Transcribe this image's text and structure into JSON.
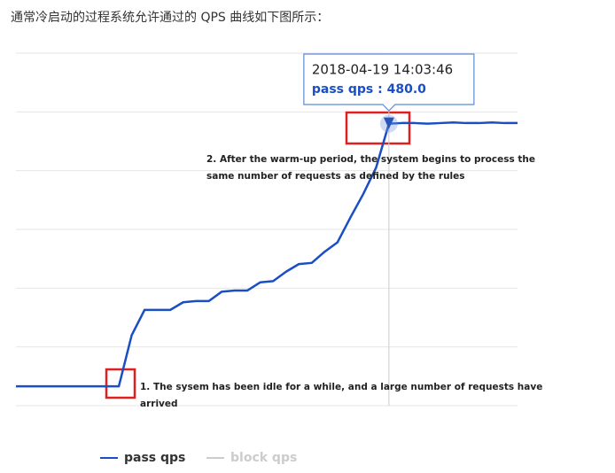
{
  "intro": "通常冷启动的过程系统允许通过的 QPS 曲线如下图所示：",
  "chart_data": {
    "type": "line",
    "ylim": [
      0,
      600
    ],
    "yticks": [
      0,
      100,
      200,
      300,
      400,
      500,
      600
    ],
    "grid": true,
    "series": [
      {
        "name": "pass qps",
        "color": "#1a4fc4",
        "values": [
          33,
          33,
          33,
          33,
          33,
          33,
          33,
          33,
          33,
          120,
          163,
          163,
          163,
          176,
          178,
          178,
          194,
          196,
          196,
          210,
          212,
          228,
          241,
          243,
          262,
          278,
          320,
          360,
          405,
          480,
          481,
          481,
          480,
          481,
          482,
          481,
          481,
          482,
          481,
          481
        ]
      },
      {
        "name": "block qps",
        "color": "#cccccc",
        "hidden": true,
        "values": [
          null,
          null,
          null,
          null,
          null,
          null,
          null,
          null,
          null,
          null,
          null,
          null,
          null,
          null,
          null,
          null,
          null,
          null,
          null,
          null,
          null,
          null,
          null,
          null,
          null,
          null,
          null,
          null,
          null,
          null,
          null,
          null,
          null,
          null,
          null,
          null,
          null,
          null,
          null,
          null
        ]
      }
    ],
    "tooltip": {
      "index": 29,
      "time": "2018-04-19 14:03:46",
      "text": "pass qps : 480.0"
    },
    "annotations": [
      {
        "index": 29,
        "lines": [
          "2. After the warm-up period, the system begins to process the",
          "same number of requests as defined by the rules"
        ]
      },
      {
        "index": 8,
        "lines": [
          "1. The sysem has been idle for a while, and a large number of requests have",
          "arrived"
        ]
      }
    ]
  }
}
